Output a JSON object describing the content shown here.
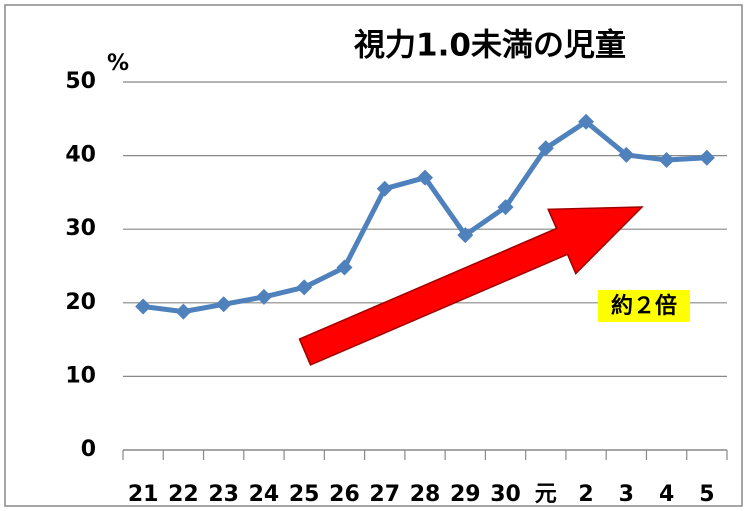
{
  "chart_data": {
    "type": "line",
    "title": "視力1.0未満の児童",
    "y_unit": "%",
    "categories": [
      "21",
      "22",
      "23",
      "24",
      "25",
      "26",
      "27",
      "28",
      "29",
      "30",
      "元",
      "2",
      "3",
      "4",
      "5"
    ],
    "series": [
      {
        "name": "視力1.0未満の児童",
        "color": "#4f81bd",
        "values": [
          19.5,
          18.8,
          19.8,
          20.8,
          22.1,
          24.8,
          35.5,
          37.0,
          29.2,
          33.0,
          41.0,
          44.6,
          40.1,
          39.4,
          39.7
        ]
      }
    ],
    "ylim": [
      0,
      50
    ],
    "yticks": [
      0,
      10,
      20,
      30,
      40,
      50
    ],
    "grid": true,
    "annotations": [
      "約２倍"
    ]
  }
}
